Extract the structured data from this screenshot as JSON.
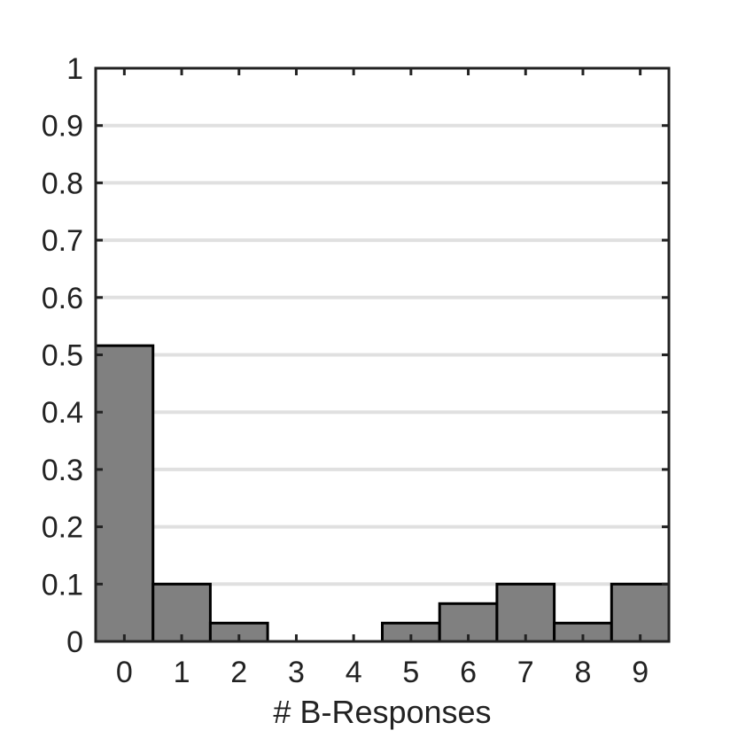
{
  "chart_data": {
    "type": "bar",
    "title": "",
    "xlabel": "# B-Responses",
    "ylabel": "",
    "categories": [
      "0",
      "1",
      "2",
      "3",
      "4",
      "5",
      "6",
      "7",
      "8",
      "9"
    ],
    "values": [
      0.516,
      0.1,
      0.032,
      0.0,
      0.0,
      0.032,
      0.066,
      0.1,
      0.032,
      0.1
    ],
    "ylim": [
      0,
      1
    ],
    "yticks": [
      "0",
      "0.1",
      "0.2",
      "0.3",
      "0.4",
      "0.5",
      "0.6",
      "0.7",
      "0.8",
      "0.9",
      "1"
    ],
    "grid": "horizontal",
    "bar_color": "#808080",
    "edge_color": "#000000",
    "grid_color": "#e0e0e0"
  }
}
